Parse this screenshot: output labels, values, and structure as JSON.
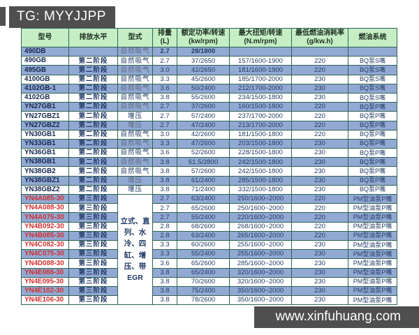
{
  "watermark_top": {
    "label": "TG: MYYJJPP"
  },
  "watermark_bottom": {
    "label": "www.xinfuhuang.com"
  },
  "colors": {
    "header_bg": "#c5eec5",
    "row_blue": "#92a9d4",
    "row_white": "#ffffff",
    "table_border": "#2e6353",
    "model_text": "#16284e",
    "model_text_red": "#d23030",
    "watermark_bar": "#4f4f4f"
  },
  "table": {
    "headers": [
      "型号",
      "排放水平",
      "型式",
      "排量\n(L)",
      "额定功率/转速\n(kw/rpm)",
      "最大扭矩/转速\n(N.m/rpm)",
      "最低燃油消耗率\n(g/kw.h)",
      "燃油系统"
    ],
    "merged_type_cell": {
      "text": "立式、直列、水冷、四缸、增压、带EGR",
      "rowspan": 12
    },
    "rows": [
      {
        "model": "490DB",
        "emission": "",
        "type": "自然吸气",
        "displacement": "2.7",
        "power": "28/1800",
        "torque": "",
        "consumption": "",
        "fuel_system": "",
        "shade": "blue",
        "bold": true,
        "model_red": false
      },
      {
        "model": "490GB",
        "emission": "第二阶段",
        "type": "自然吸气",
        "displacement": "2.7",
        "power": "37/2650",
        "torque": "157/1600-1900",
        "consumption": "220",
        "fuel_system": "BQ泵S嘴",
        "shade": "white",
        "bold": false,
        "model_red": false
      },
      {
        "model": "495GB",
        "emission": "第二阶段",
        "type": "自然吸气",
        "displacement": "3.0",
        "power": "42/2650",
        "torque": "181/1600-1900",
        "consumption": "220",
        "fuel_system": "BQ泵S嘴",
        "shade": "blue",
        "bold": false,
        "model_red": false
      },
      {
        "model": "4100GB",
        "emission": "第二阶段",
        "type": "自然吸气",
        "displacement": "3.3",
        "power": "45/2600",
        "torque": "185/1700-2000",
        "consumption": "230",
        "fuel_system": "BQ泵S嘴",
        "shade": "white",
        "bold": false,
        "model_red": false
      },
      {
        "model": "4102GB-1",
        "emission": "第二阶段",
        "type": "自然吸气",
        "displacement": "3.6",
        "power": "50/2400",
        "torque": "212/1700-2000",
        "consumption": "230",
        "fuel_system": "BQ泵S嘴",
        "shade": "blue",
        "bold": false,
        "model_red": false
      },
      {
        "model": "4102GB",
        "emission": "第二阶段",
        "type": "自然吸气",
        "displacement": "3.8",
        "power": "55/2600",
        "torque": "234/1500-1800",
        "consumption": "230",
        "fuel_system": "BQ泵S嘴",
        "shade": "white",
        "bold": false,
        "model_red": false
      },
      {
        "model": "YN27GB1",
        "emission": "第二阶段",
        "type": "自然吸气",
        "displacement": "2.7",
        "power": "37/2600",
        "torque": "160/1500-1800",
        "consumption": "220",
        "fuel_system": "BQ泵P嘴",
        "shade": "blue",
        "bold": false,
        "model_red": false
      },
      {
        "model": "YN27GBZ1",
        "emission": "第二阶段",
        "type": "增压",
        "displacement": "2.7",
        "power": "57/2400",
        "torque": "237/1700-2000",
        "consumption": "220",
        "fuel_system": "BQ泵P嘴",
        "shade": "white",
        "bold": false,
        "model_red": false
      },
      {
        "model": "YN27GBZ2",
        "emission": "第二阶段",
        "type": "增压",
        "displacement": "2.7",
        "power": "47/2400",
        "torque": "213/1700-2000",
        "consumption": "220",
        "fuel_system": "BQ泵P嘴",
        "shade": "blue",
        "bold": false,
        "model_red": false
      },
      {
        "model": "YN30GB1",
        "emission": "第二阶段",
        "type": "自然吸气",
        "displacement": "3.0",
        "power": "42/2600",
        "torque": "181/1500-1800",
        "consumption": "220",
        "fuel_system": "BQ泵P嘴",
        "shade": "white",
        "bold": false,
        "model_red": false
      },
      {
        "model": "YN33GB1",
        "emission": "第二阶段",
        "type": "自然吸气",
        "displacement": "3.3",
        "power": "47/2600",
        "torque": "203/1500-1800",
        "consumption": "230",
        "fuel_system": "BQ泵P嘴",
        "shade": "blue",
        "bold": false,
        "model_red": false
      },
      {
        "model": "YN36GB1",
        "emission": "第二阶段",
        "type": "自然吸气",
        "displacement": "3.6",
        "power": "52/2600",
        "torque": "228/1500-1800",
        "consumption": "230",
        "fuel_system": "BQ泵P嘴",
        "shade": "white",
        "bold": false,
        "model_red": false
      },
      {
        "model": "YN38GB1",
        "emission": "第二阶段",
        "type": "自然吸气",
        "displacement": "3.8",
        "power": "61.5/2800",
        "torque": "242/1500-1800",
        "consumption": "230",
        "fuel_system": "BQ泵P嘴",
        "shade": "blue",
        "bold": false,
        "model_red": false
      },
      {
        "model": "YN38GB2",
        "emission": "第二阶段",
        "type": "自然吸气",
        "displacement": "3.8",
        "power": "57/2600",
        "torque": "242/1500-1800",
        "consumption": "230",
        "fuel_system": "BQ泵P嘴",
        "shade": "white",
        "bold": false,
        "model_red": false
      },
      {
        "model": "YN38GBZ1",
        "emission": "第二阶段",
        "type": "增压",
        "displacement": "3.8",
        "power": "61/2400",
        "torque": "285/1500-1800",
        "consumption": "230",
        "fuel_system": "BQ泵P嘴",
        "shade": "blue",
        "bold": false,
        "model_red": false
      },
      {
        "model": "YN38GBZ2",
        "emission": "第二阶段",
        "type": "增压",
        "displacement": "3.8",
        "power": "71/2400",
        "torque": "332/1500-1800",
        "consumption": "230",
        "fuel_system": "BQ泵P嘴",
        "shade": "white",
        "bold": false,
        "model_red": false
      },
      {
        "model": "YN4A085-30",
        "emission": "第三阶段",
        "type": "@merged",
        "displacement": "2.7",
        "power": "63/2400",
        "torque": "250/1600~2000",
        "consumption": "220",
        "fuel_system": "PM型油泵P嘴",
        "shade": "blue",
        "bold": false,
        "model_red": true
      },
      {
        "model": "YN4A088-30",
        "emission": "第三阶段",
        "type": null,
        "displacement": "2.7",
        "power": "65/2600",
        "torque": "250/1600~2000",
        "consumption": "220",
        "fuel_system": "PM型油泵P嘴",
        "shade": "white",
        "bold": false,
        "model_red": true
      },
      {
        "model": "YN4A075-30",
        "emission": "第三阶段",
        "type": null,
        "displacement": "2.7",
        "power": "55/2400",
        "torque": "220/1600~2000",
        "consumption": "220",
        "fuel_system": "PM型油泵P嘴",
        "shade": "blue",
        "bold": false,
        "model_red": true
      },
      {
        "model": "YN4B092-30",
        "emission": "第三阶段",
        "type": null,
        "displacement": "2.8",
        "power": "68/2600",
        "torque": "268/1600~2000",
        "consumption": "220",
        "fuel_system": "PM型油泵P嘴",
        "shade": "white",
        "bold": false,
        "model_red": true
      },
      {
        "model": "YN4B085-30",
        "emission": "第三阶段",
        "type": null,
        "displacement": "2.8",
        "power": "63/2400",
        "torque": "265/1600~2000",
        "consumption": "220",
        "fuel_system": "PM型油泵P嘴",
        "shade": "blue",
        "bold": false,
        "model_red": true
      },
      {
        "model": "YN4C082-30",
        "emission": "第三阶段",
        "type": null,
        "displacement": "3.3",
        "power": "60/2600",
        "torque": "255/1600~2000",
        "consumption": "230",
        "fuel_system": "PM型油泵P嘴",
        "shade": "white",
        "bold": false,
        "model_red": true
      },
      {
        "model": "YN4C075-30",
        "emission": "第三阶段",
        "type": null,
        "displacement": "3.3",
        "power": "55/2400",
        "torque": "255/1600~2000",
        "consumption": "230",
        "fuel_system": "PM型油泵P嘴",
        "shade": "blue",
        "bold": false,
        "model_red": true
      },
      {
        "model": "YN4D088-30",
        "emission": "第三阶段",
        "type": null,
        "displacement": "3.6",
        "power": "65/2600",
        "torque": "285/1600~2000",
        "consumption": "230",
        "fuel_system": "PM型油泵P嘴",
        "shade": "white",
        "bold": false,
        "model_red": true
      },
      {
        "model": "YN4E088-30",
        "emission": "第三阶段",
        "type": null,
        "displacement": "3.8",
        "power": "65/2400",
        "torque": "320/1600~2000",
        "consumption": "230",
        "fuel_system": "PM型油泵P嘴",
        "shade": "blue",
        "bold": false,
        "model_red": true
      },
      {
        "model": "YN4E095-30",
        "emission": "第三阶段",
        "type": null,
        "displacement": "3.8",
        "power": "70/2600",
        "torque": "320/1600~2000",
        "consumption": "230",
        "fuel_system": "PM型油泵P嘴",
        "shade": "white",
        "bold": false,
        "model_red": true
      },
      {
        "model": "YN4E102-30",
        "emission": "第三阶段",
        "type": null,
        "displacement": "3.8",
        "power": "75/2400",
        "torque": "350/1600~2000",
        "consumption": "230",
        "fuel_system": "PM型油泵P嘴",
        "shade": "blue",
        "bold": false,
        "model_red": true
      },
      {
        "model": "YN4E106-30",
        "emission": "第三阶段",
        "type": null,
        "displacement": "3.8",
        "power": "78/2600",
        "torque": "350/1600~2000",
        "consumption": "230",
        "fuel_system": "PM型油泵P嘴",
        "shade": "white",
        "bold": false,
        "model_red": true
      }
    ]
  }
}
